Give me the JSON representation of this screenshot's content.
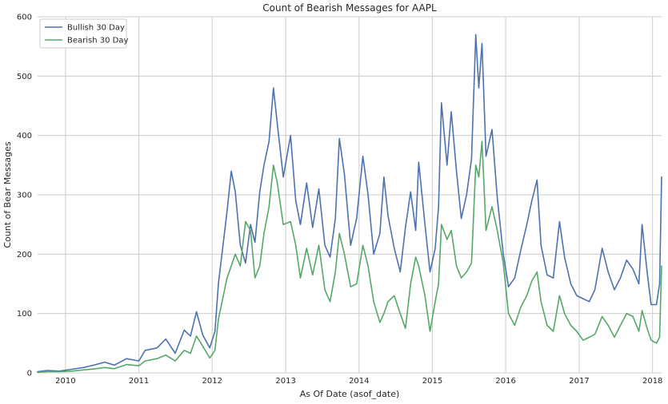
{
  "chart_data": {
    "type": "line",
    "title": "Count of Bearish Messages for AAPL",
    "xlabel": "As Of Date (asof_date)",
    "ylabel": "Count of Bear Messages",
    "xlim": [
      "2009-08-15",
      "2018-02-15"
    ],
    "ylim": [
      0,
      600
    ],
    "x_ticks": [
      "2010",
      "2011",
      "2012",
      "2013",
      "2014",
      "2015",
      "2016",
      "2017",
      "2018"
    ],
    "y_ticks": [
      "0",
      "100",
      "200",
      "300",
      "400",
      "500",
      "600"
    ],
    "grid": true,
    "legend_position": "top-left",
    "series": [
      {
        "name": "Bullish 30 Day",
        "color": "#4c72b0",
        "points": [
          [
            "2009-08-15",
            2
          ],
          [
            "2009-10-01",
            4
          ],
          [
            "2009-12-01",
            3
          ],
          [
            "2010-02-01",
            6
          ],
          [
            "2010-04-01",
            9
          ],
          [
            "2010-06-01",
            14
          ],
          [
            "2010-07-15",
            18
          ],
          [
            "2010-09-01",
            13
          ],
          [
            "2010-11-01",
            24
          ],
          [
            "2011-01-01",
            20
          ],
          [
            "2011-02-01",
            38
          ],
          [
            "2011-04-01",
            42
          ],
          [
            "2011-05-15",
            57
          ],
          [
            "2011-07-01",
            33
          ],
          [
            "2011-08-15",
            72
          ],
          [
            "2011-09-15",
            62
          ],
          [
            "2011-10-15",
            103
          ],
          [
            "2011-11-15",
            64
          ],
          [
            "2011-12-20",
            42
          ],
          [
            "2012-01-15",
            70
          ],
          [
            "2012-02-01",
            150
          ],
          [
            "2012-03-15",
            272
          ],
          [
            "2012-04-05",
            340
          ],
          [
            "2012-04-25",
            305
          ],
          [
            "2012-05-20",
            215
          ],
          [
            "2012-06-15",
            185
          ],
          [
            "2012-07-10",
            250
          ],
          [
            "2012-08-01",
            220
          ],
          [
            "2012-08-25",
            305
          ],
          [
            "2012-09-15",
            350
          ],
          [
            "2012-10-10",
            390
          ],
          [
            "2012-11-01",
            480
          ],
          [
            "2012-11-20",
            420
          ],
          [
            "2012-12-20",
            330
          ],
          [
            "2013-01-25",
            400
          ],
          [
            "2013-02-20",
            290
          ],
          [
            "2013-03-15",
            250
          ],
          [
            "2013-04-15",
            320
          ],
          [
            "2013-05-15",
            245
          ],
          [
            "2013-06-15",
            310
          ],
          [
            "2013-07-15",
            215
          ],
          [
            "2013-08-10",
            195
          ],
          [
            "2013-09-05",
            260
          ],
          [
            "2013-09-25",
            395
          ],
          [
            "2013-10-20",
            335
          ],
          [
            "2013-11-20",
            215
          ],
          [
            "2013-12-20",
            260
          ],
          [
            "2014-01-20",
            365
          ],
          [
            "2014-02-15",
            300
          ],
          [
            "2014-03-15",
            200
          ],
          [
            "2014-04-15",
            235
          ],
          [
            "2014-05-05",
            330
          ],
          [
            "2014-05-25",
            265
          ],
          [
            "2014-06-25",
            210
          ],
          [
            "2014-07-25",
            170
          ],
          [
            "2014-08-20",
            245
          ],
          [
            "2014-09-15",
            305
          ],
          [
            "2014-10-10",
            240
          ],
          [
            "2014-10-25",
            355
          ],
          [
            "2014-11-25",
            250
          ],
          [
            "2014-12-20",
            170
          ],
          [
            "2015-01-15",
            210
          ],
          [
            "2015-02-01",
            280
          ],
          [
            "2015-02-15",
            455
          ],
          [
            "2015-03-15",
            350
          ],
          [
            "2015-04-05",
            440
          ],
          [
            "2015-05-01",
            340
          ],
          [
            "2015-05-25",
            260
          ],
          [
            "2015-06-20",
            300
          ],
          [
            "2015-07-15",
            360
          ],
          [
            "2015-08-05",
            570
          ],
          [
            "2015-08-20",
            480
          ],
          [
            "2015-09-05",
            555
          ],
          [
            "2015-09-25",
            365
          ],
          [
            "2015-10-25",
            410
          ],
          [
            "2015-11-20",
            295
          ],
          [
            "2015-12-20",
            200
          ],
          [
            "2016-01-15",
            145
          ],
          [
            "2016-02-15",
            160
          ],
          [
            "2016-03-15",
            205
          ],
          [
            "2016-04-15",
            250
          ],
          [
            "2016-05-10",
            290
          ],
          [
            "2016-06-05",
            325
          ],
          [
            "2016-06-25",
            215
          ],
          [
            "2016-07-25",
            165
          ],
          [
            "2016-08-25",
            160
          ],
          [
            "2016-09-25",
            255
          ],
          [
            "2016-10-20",
            195
          ],
          [
            "2016-11-20",
            150
          ],
          [
            "2016-12-20",
            130
          ],
          [
            "2017-01-20",
            125
          ],
          [
            "2017-02-20",
            120
          ],
          [
            "2017-03-20",
            140
          ],
          [
            "2017-04-25",
            210
          ],
          [
            "2017-05-25",
            170
          ],
          [
            "2017-06-25",
            140
          ],
          [
            "2017-07-25",
            160
          ],
          [
            "2017-08-25",
            190
          ],
          [
            "2017-09-25",
            175
          ],
          [
            "2017-10-25",
            150
          ],
          [
            "2017-11-10",
            250
          ],
          [
            "2017-12-05",
            170
          ],
          [
            "2017-12-25",
            115
          ],
          [
            "2018-01-20",
            115
          ],
          [
            "2018-02-05",
            150
          ],
          [
            "2018-02-15",
            330
          ]
        ]
      },
      {
        "name": "Bearish 30 Day",
        "color": "#55a868",
        "points": [
          [
            "2009-08-15",
            1
          ],
          [
            "2009-10-01",
            2
          ],
          [
            "2009-12-01",
            2
          ],
          [
            "2010-02-01",
            3
          ],
          [
            "2010-04-01",
            5
          ],
          [
            "2010-06-01",
            7
          ],
          [
            "2010-07-15",
            9
          ],
          [
            "2010-09-01",
            7
          ],
          [
            "2010-11-01",
            14
          ],
          [
            "2011-01-01",
            12
          ],
          [
            "2011-02-01",
            20
          ],
          [
            "2011-04-01",
            24
          ],
          [
            "2011-05-15",
            30
          ],
          [
            "2011-07-01",
            20
          ],
          [
            "2011-08-15",
            38
          ],
          [
            "2011-09-15",
            33
          ],
          [
            "2011-10-15",
            62
          ],
          [
            "2011-11-15",
            45
          ],
          [
            "2011-12-20",
            25
          ],
          [
            "2012-01-15",
            38
          ],
          [
            "2012-02-01",
            90
          ],
          [
            "2012-03-15",
            160
          ],
          [
            "2012-04-05",
            180
          ],
          [
            "2012-04-25",
            200
          ],
          [
            "2012-05-20",
            180
          ],
          [
            "2012-06-15",
            255
          ],
          [
            "2012-07-10",
            240
          ],
          [
            "2012-08-01",
            160
          ],
          [
            "2012-08-25",
            180
          ],
          [
            "2012-09-15",
            235
          ],
          [
            "2012-10-10",
            280
          ],
          [
            "2012-11-01",
            350
          ],
          [
            "2012-11-20",
            320
          ],
          [
            "2012-12-20",
            250
          ],
          [
            "2013-01-25",
            255
          ],
          [
            "2013-02-20",
            215
          ],
          [
            "2013-03-15",
            160
          ],
          [
            "2013-04-15",
            210
          ],
          [
            "2013-05-15",
            165
          ],
          [
            "2013-06-15",
            215
          ],
          [
            "2013-07-15",
            140
          ],
          [
            "2013-08-10",
            120
          ],
          [
            "2013-09-05",
            170
          ],
          [
            "2013-09-25",
            235
          ],
          [
            "2013-10-20",
            200
          ],
          [
            "2013-11-20",
            145
          ],
          [
            "2013-12-20",
            150
          ],
          [
            "2014-01-20",
            215
          ],
          [
            "2014-02-15",
            180
          ],
          [
            "2014-03-15",
            120
          ],
          [
            "2014-04-15",
            85
          ],
          [
            "2014-05-05",
            100
          ],
          [
            "2014-05-25",
            120
          ],
          [
            "2014-06-25",
            130
          ],
          [
            "2014-07-25",
            100
          ],
          [
            "2014-08-20",
            75
          ],
          [
            "2014-09-15",
            150
          ],
          [
            "2014-10-10",
            195
          ],
          [
            "2014-10-25",
            180
          ],
          [
            "2014-11-25",
            130
          ],
          [
            "2014-12-20",
            70
          ],
          [
            "2015-01-15",
            120
          ],
          [
            "2015-02-01",
            150
          ],
          [
            "2015-02-15",
            250
          ],
          [
            "2015-03-15",
            225
          ],
          [
            "2015-04-05",
            240
          ],
          [
            "2015-05-01",
            180
          ],
          [
            "2015-05-25",
            160
          ],
          [
            "2015-06-20",
            170
          ],
          [
            "2015-07-15",
            185
          ],
          [
            "2015-08-05",
            350
          ],
          [
            "2015-08-20",
            330
          ],
          [
            "2015-09-05",
            390
          ],
          [
            "2015-09-25",
            240
          ],
          [
            "2015-10-25",
            280
          ],
          [
            "2015-11-20",
            240
          ],
          [
            "2015-12-20",
            185
          ],
          [
            "2016-01-15",
            100
          ],
          [
            "2016-02-15",
            80
          ],
          [
            "2016-03-15",
            110
          ],
          [
            "2016-04-15",
            130
          ],
          [
            "2016-05-10",
            155
          ],
          [
            "2016-06-05",
            170
          ],
          [
            "2016-06-25",
            120
          ],
          [
            "2016-07-25",
            80
          ],
          [
            "2016-08-25",
            70
          ],
          [
            "2016-09-25",
            130
          ],
          [
            "2016-10-20",
            100
          ],
          [
            "2016-11-20",
            80
          ],
          [
            "2016-12-20",
            70
          ],
          [
            "2017-01-20",
            55
          ],
          [
            "2017-02-20",
            60
          ],
          [
            "2017-03-20",
            65
          ],
          [
            "2017-04-25",
            95
          ],
          [
            "2017-05-25",
            80
          ],
          [
            "2017-06-25",
            60
          ],
          [
            "2017-07-25",
            80
          ],
          [
            "2017-08-25",
            100
          ],
          [
            "2017-09-25",
            95
          ],
          [
            "2017-10-25",
            70
          ],
          [
            "2017-11-10",
            105
          ],
          [
            "2017-12-05",
            75
          ],
          [
            "2017-12-25",
            55
          ],
          [
            "2018-01-20",
            50
          ],
          [
            "2018-02-05",
            60
          ],
          [
            "2018-02-15",
            180
          ]
        ]
      }
    ]
  }
}
